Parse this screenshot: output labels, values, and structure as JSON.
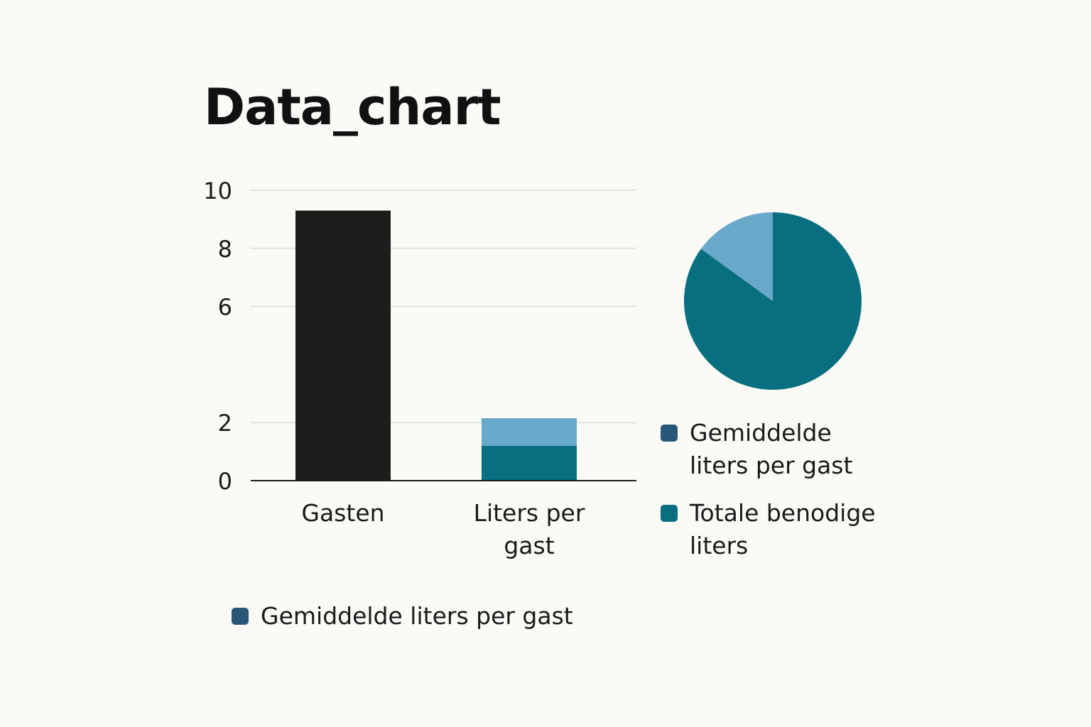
{
  "chart_data": [
    {
      "type": "bar",
      "title": "Data_chart",
      "categories": [
        "Gasten",
        "Liters per gast"
      ],
      "category_labels": [
        [
          "Gasten"
        ],
        [
          "Liters per",
          "gast"
        ]
      ],
      "yticks": [
        0,
        2,
        6,
        8,
        10
      ],
      "ylim": [
        0,
        10
      ],
      "grid": true,
      "series": [
        {
          "name": "",
          "values": [
            9.3,
            1.2
          ],
          "colors": [
            "#1D1D1B",
            "#076F7F"
          ]
        },
        {
          "name": "",
          "values": [
            0,
            0.95
          ],
          "colors": [
            "#1D1D1B",
            "#6AA8CA"
          ]
        }
      ],
      "legend": {
        "placement": "bottom-left",
        "entries": [
          {
            "label": "Gemiddelde liters per gast",
            "color": "#285777"
          }
        ]
      }
    },
    {
      "type": "pie",
      "slices": [
        {
          "label": "Totale benodige liters",
          "value": 85,
          "color": "#076F7F"
        },
        {
          "label": "Gemiddelde liters per gast",
          "value": 15,
          "color": "#6AA8CA"
        }
      ],
      "legend": {
        "placement": "below",
        "entries": [
          {
            "label": "Gemiddelde liters per gast",
            "color": "#285777"
          },
          {
            "label": "Totale benodige liters",
            "color": "#076F7F"
          }
        ]
      }
    }
  ]
}
